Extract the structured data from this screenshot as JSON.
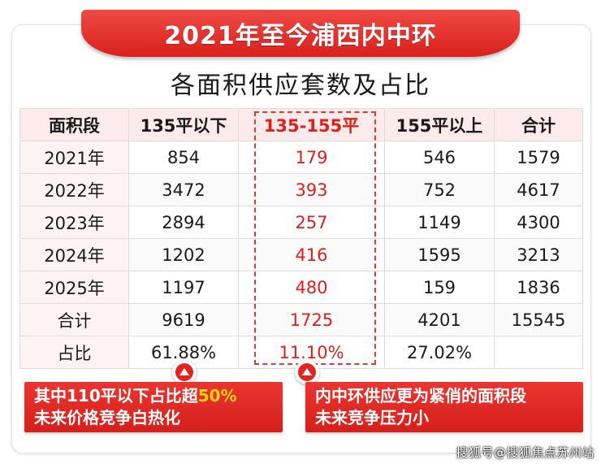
{
  "banner": {
    "title": "2021年至今浦西内中环"
  },
  "subtitle": "各面积供应套数及占比",
  "table": {
    "headers": [
      "面积段",
      "135平以下",
      "135-155平",
      "155平以上",
      "合计"
    ],
    "rows": [
      [
        "2021年",
        "854",
        "179",
        "546",
        "1579"
      ],
      [
        "2022年",
        "3472",
        "393",
        "752",
        "4617"
      ],
      [
        "2023年",
        "2894",
        "257",
        "1149",
        "4300"
      ],
      [
        "2024年",
        "1202",
        "416",
        "1595",
        "3213"
      ],
      [
        "2025年",
        "1197",
        "480",
        "159",
        "1836"
      ],
      [
        "合计",
        "9619",
        "1725",
        "4201",
        "15545"
      ],
      [
        "占比",
        "61.88%",
        "11.10%",
        "27.02%",
        ""
      ]
    ],
    "highlight_color": "#e01e1a"
  },
  "callouts": {
    "left": {
      "line1_prefix": "其中110平以下占比超",
      "line1_highlight": "50%",
      "line2": "未来价格竞争白热化"
    },
    "right": {
      "line1": "内中环供应更为紧俏的面积段",
      "line2": "未来竞争压力小"
    }
  },
  "icons": {
    "marker": "up-arrow-icon"
  },
  "watermark": "搜狐号@搜狐焦点苏州站",
  "colors": {
    "accent": "#e3231f",
    "highlight_yellow": "#ffd21a"
  }
}
